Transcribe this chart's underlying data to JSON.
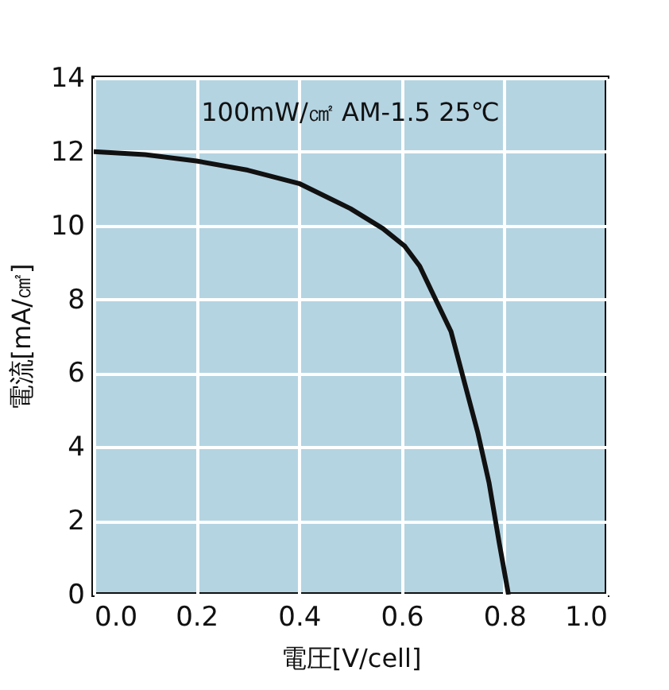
{
  "chart_data": {
    "type": "line",
    "xlabel": "電圧[V/cell]",
    "ylabel": "電流[mA/㎠]",
    "annotations": [
      "100mW/㎠  AM-1.5  25℃"
    ],
    "x": [
      0,
      0.1,
      0.2,
      0.3,
      0.4,
      0.5,
      0.563,
      0.606,
      0.635,
      0.659,
      0.696,
      0.722,
      0.748,
      0.77,
      0.79,
      0.808
    ],
    "series": [
      {
        "color": "#111111",
        "values": [
          12,
          11.92,
          11.75,
          11.5,
          11.14,
          10.46,
          9.92,
          9.44,
          8.9,
          8.2,
          7.13,
          5.76,
          4.4,
          3.04,
          1.4,
          0
        ]
      }
    ],
    "xlim": [
      0,
      1
    ],
    "xticks": [
      {
        "value": 0,
        "label": "0.0"
      },
      0.2,
      0.4,
      0.6,
      0.8,
      {
        "value": 1,
        "label": "1.0"
      }
    ],
    "ylim": [
      0,
      14
    ],
    "yticks": [
      0,
      2,
      4,
      6,
      8,
      10,
      12,
      14
    ],
    "grid": true,
    "marker": "none",
    "line_style": "solid"
  }
}
